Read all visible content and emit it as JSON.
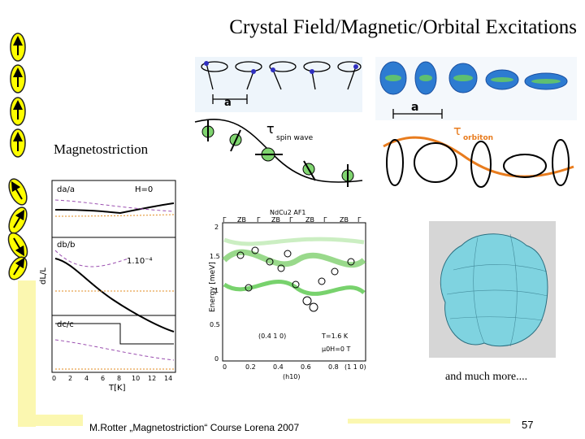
{
  "slide": {
    "title": "Crystal Field/Magnetic/Orbital Excitations",
    "subtitle": "Magnetostriction",
    "more_text": "and much more....",
    "footer": "M.Rotter „Magnetostriction“ Course Lorena 2007",
    "page_number": "57"
  },
  "spin_panel": {
    "a_label": "a",
    "tau_label": "τ",
    "tau_sub": "spin wave"
  },
  "orbital_panel": {
    "a_label": "a",
    "tau_label": "τ",
    "tau_sub": "orbiton"
  },
  "strain_plot": {
    "y_axis": "dL/L",
    "x_axis": "T[K]",
    "panels": [
      "da/a",
      "db/b",
      "dc/c"
    ],
    "h_label": "H=0",
    "scale_label": "1.10⁻⁴",
    "x_ticks": [
      "0",
      "2",
      "4",
      "6",
      "8",
      "10",
      "12",
      "14"
    ]
  },
  "dispersion_plot": {
    "header": "NdCu2 AF1",
    "zone_labels": [
      "Γ",
      "ZB",
      "Γ",
      "ZB",
      "Γ",
      "ZB",
      "Γ",
      "ZB",
      "Γ"
    ],
    "y_axis": "Energy [meV]",
    "x_axis": "(h10)",
    "y_ticks": [
      "0",
      "0.5",
      "1",
      "1.5",
      "2"
    ],
    "x_ticks": [
      "0",
      "0.2",
      "0.4",
      "0.6",
      "0.8",
      "1"
    ],
    "annotation_left": "(0.4 1 0)",
    "annotation_right_1": "T=1.6 K",
    "annotation_right_2": "μ0H=0 T",
    "annotation_end": "(1 1 0)"
  },
  "arrows": {
    "up_count": 4,
    "tilted_count": 4
  }
}
